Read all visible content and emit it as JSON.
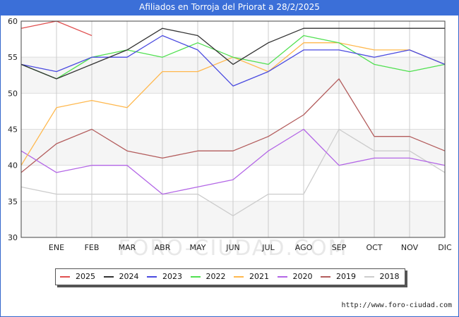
{
  "header": {
    "title": "Afiliados en Torroja del Priorat a 28/2/2025"
  },
  "watermark": "FORO-CIUDAD.COM",
  "source": "http://www.foro-ciudad.com",
  "chart_data": {
    "type": "line",
    "title": "Afiliados en Torroja del Priorat a 28/2/2025",
    "xlabel": "",
    "ylabel": "",
    "categories": [
      "ENE",
      "FEB",
      "MAR",
      "ABR",
      "MAY",
      "JUN",
      "JUL",
      "AGO",
      "SEP",
      "OCT",
      "NOV",
      "DIC"
    ],
    "ylim": [
      30,
      60
    ],
    "yticks": [
      30,
      35,
      40,
      45,
      50,
      55,
      60
    ],
    "grid": true,
    "legend_position": "bottom",
    "start_value_label": "previous DIC",
    "series": [
      {
        "name": "2025",
        "color": "#e05050",
        "start": 59,
        "values": [
          60,
          58,
          null,
          null,
          null,
          null,
          null,
          null,
          null,
          null,
          null,
          null
        ]
      },
      {
        "name": "2024",
        "color": "#333333",
        "start": 54,
        "values": [
          52,
          54,
          56,
          59,
          58,
          54,
          57,
          59,
          59,
          59,
          59,
          59
        ]
      },
      {
        "name": "2023",
        "color": "#4a4ae0",
        "start": 54,
        "values": [
          53,
          55,
          55,
          58,
          56,
          51,
          53,
          56,
          56,
          55,
          56,
          54
        ]
      },
      {
        "name": "2022",
        "color": "#50e050",
        "start": 54,
        "values": [
          52,
          55,
          56,
          55,
          57,
          55,
          54,
          58,
          57,
          54,
          53,
          54
        ]
      },
      {
        "name": "2021",
        "color": "#ffb84d",
        "start": 40,
        "values": [
          48,
          49,
          48,
          53,
          53,
          55,
          53,
          57,
          57,
          56,
          56,
          54
        ]
      },
      {
        "name": "2020",
        "color": "#b366e6",
        "start": 42,
        "values": [
          39,
          40,
          40,
          36,
          37,
          38,
          42,
          45,
          40,
          41,
          41,
          40
        ]
      },
      {
        "name": "2019",
        "color": "#b35c5c",
        "start": 39,
        "values": [
          43,
          45,
          42,
          41,
          42,
          42,
          44,
          47,
          52,
          44,
          44,
          42
        ]
      },
      {
        "name": "2018",
        "color": "#cccccc",
        "start": 37,
        "values": [
          36,
          36,
          36,
          36,
          36,
          33,
          36,
          36,
          45,
          42,
          42,
          39
        ]
      }
    ]
  }
}
